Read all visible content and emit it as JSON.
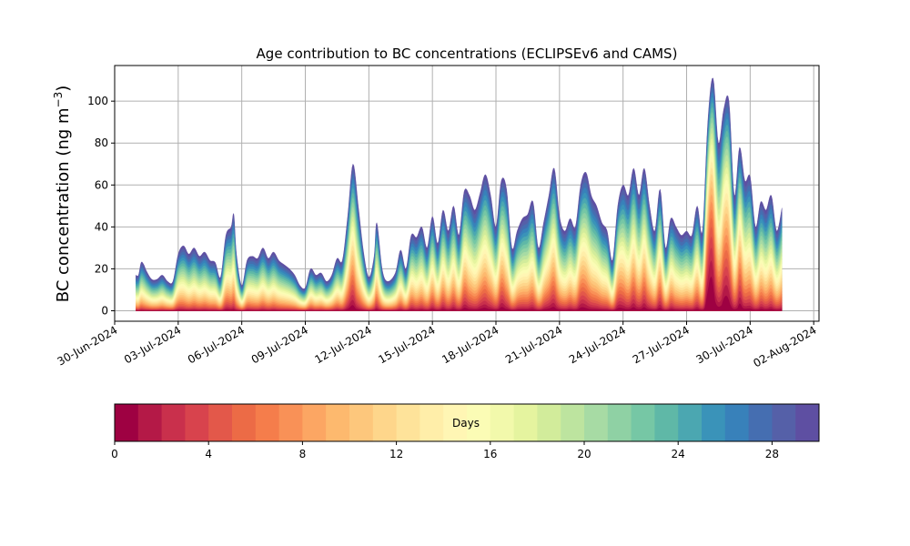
{
  "chart_data": {
    "type": "area",
    "title": "Age contribution to BC concentrations (ECLIPSEv6 and CAMS)",
    "ylabel": "BC concentration (ng m",
    "ylabel_sup": "−3",
    "ylabel_close": ")",
    "xlabel": "",
    "ylim": [
      -5,
      117
    ],
    "xlim": [
      "2024-06-30T00:00",
      "2024-08-02T06:00"
    ],
    "grid": true,
    "x_tick_labels": [
      "30-Jun-2024",
      "03-Jul-2024",
      "06-Jul-2024",
      "09-Jul-2024",
      "12-Jul-2024",
      "15-Jul-2024",
      "18-Jul-2024",
      "21-Jul-2024",
      "24-Jul-2024",
      "27-Jul-2024",
      "30-Jul-2024",
      "02-Aug-2024"
    ],
    "x_tick_dates": [
      "2024-06-30",
      "2024-07-03",
      "2024-07-06",
      "2024-07-09",
      "2024-07-12",
      "2024-07-15",
      "2024-07-18",
      "2024-07-21",
      "2024-07-24",
      "2024-07-27",
      "2024-07-30",
      "2024-08-02"
    ],
    "y_ticks": [
      0,
      20,
      40,
      60,
      80,
      100
    ],
    "series_total": [
      {
        "x": "2024-07-01T00:00",
        "y": 17
      },
      {
        "x": "2024-07-01T03:00",
        "y": 17
      },
      {
        "x": "2024-07-01T06:00",
        "y": 23
      },
      {
        "x": "2024-07-01T09:00",
        "y": 22
      },
      {
        "x": "2024-07-01T12:00",
        "y": 19
      },
      {
        "x": "2024-07-01T18:00",
        "y": 15
      },
      {
        "x": "2024-07-02T00:00",
        "y": 15
      },
      {
        "x": "2024-07-02T06:00",
        "y": 17
      },
      {
        "x": "2024-07-02T12:00",
        "y": 14
      },
      {
        "x": "2024-07-02T18:00",
        "y": 14
      },
      {
        "x": "2024-07-03T00:00",
        "y": 27
      },
      {
        "x": "2024-07-03T06:00",
        "y": 31
      },
      {
        "x": "2024-07-03T12:00",
        "y": 27
      },
      {
        "x": "2024-07-03T18:00",
        "y": 30
      },
      {
        "x": "2024-07-04T00:00",
        "y": 26
      },
      {
        "x": "2024-07-04T06:00",
        "y": 28
      },
      {
        "x": "2024-07-04T12:00",
        "y": 24
      },
      {
        "x": "2024-07-04T18:00",
        "y": 23
      },
      {
        "x": "2024-07-05T00:00",
        "y": 16
      },
      {
        "x": "2024-07-05T06:00",
        "y": 36
      },
      {
        "x": "2024-07-05T12:00",
        "y": 40
      },
      {
        "x": "2024-07-05T15:00",
        "y": 46
      },
      {
        "x": "2024-07-05T18:00",
        "y": 27
      },
      {
        "x": "2024-07-06T00:00",
        "y": 12
      },
      {
        "x": "2024-07-06T06:00",
        "y": 24
      },
      {
        "x": "2024-07-06T12:00",
        "y": 26
      },
      {
        "x": "2024-07-06T18:00",
        "y": 25
      },
      {
        "x": "2024-07-07T00:00",
        "y": 30
      },
      {
        "x": "2024-07-07T06:00",
        "y": 25
      },
      {
        "x": "2024-07-07T12:00",
        "y": 28
      },
      {
        "x": "2024-07-07T18:00",
        "y": 24
      },
      {
        "x": "2024-07-08T00:00",
        "y": 22
      },
      {
        "x": "2024-07-08T06:00",
        "y": 20
      },
      {
        "x": "2024-07-08T12:00",
        "y": 17
      },
      {
        "x": "2024-07-08T18:00",
        "y": 12
      },
      {
        "x": "2024-07-09T00:00",
        "y": 11
      },
      {
        "x": "2024-07-09T06:00",
        "y": 20
      },
      {
        "x": "2024-07-09T12:00",
        "y": 17
      },
      {
        "x": "2024-07-09T18:00",
        "y": 18
      },
      {
        "x": "2024-07-10T00:00",
        "y": 14
      },
      {
        "x": "2024-07-10T06:00",
        "y": 17
      },
      {
        "x": "2024-07-10T12:00",
        "y": 25
      },
      {
        "x": "2024-07-10T18:00",
        "y": 24
      },
      {
        "x": "2024-07-11T00:00",
        "y": 45
      },
      {
        "x": "2024-07-11T06:00",
        "y": 70
      },
      {
        "x": "2024-07-11T12:00",
        "y": 50
      },
      {
        "x": "2024-07-11T18:00",
        "y": 28
      },
      {
        "x": "2024-07-12T00:00",
        "y": 16
      },
      {
        "x": "2024-07-12T06:00",
        "y": 26
      },
      {
        "x": "2024-07-12T09:00",
        "y": 42
      },
      {
        "x": "2024-07-12T15:00",
        "y": 20
      },
      {
        "x": "2024-07-12T21:00",
        "y": 14
      },
      {
        "x": "2024-07-13T06:00",
        "y": 18
      },
      {
        "x": "2024-07-13T12:00",
        "y": 29
      },
      {
        "x": "2024-07-13T18:00",
        "y": 20
      },
      {
        "x": "2024-07-14T00:00",
        "y": 36
      },
      {
        "x": "2024-07-14T06:00",
        "y": 35
      },
      {
        "x": "2024-07-14T12:00",
        "y": 40
      },
      {
        "x": "2024-07-14T18:00",
        "y": 30
      },
      {
        "x": "2024-07-15T00:00",
        "y": 45
      },
      {
        "x": "2024-07-15T06:00",
        "y": 32
      },
      {
        "x": "2024-07-15T12:00",
        "y": 48
      },
      {
        "x": "2024-07-15T18:00",
        "y": 38
      },
      {
        "x": "2024-07-16T00:00",
        "y": 50
      },
      {
        "x": "2024-07-16T06:00",
        "y": 36
      },
      {
        "x": "2024-07-16T12:00",
        "y": 57
      },
      {
        "x": "2024-07-16T18:00",
        "y": 55
      },
      {
        "x": "2024-07-17T00:00",
        "y": 48
      },
      {
        "x": "2024-07-17T06:00",
        "y": 56
      },
      {
        "x": "2024-07-17T12:00",
        "y": 65
      },
      {
        "x": "2024-07-17T18:00",
        "y": 55
      },
      {
        "x": "2024-07-18T00:00",
        "y": 40
      },
      {
        "x": "2024-07-18T06:00",
        "y": 62
      },
      {
        "x": "2024-07-18T12:00",
        "y": 58
      },
      {
        "x": "2024-07-18T18:00",
        "y": 30
      },
      {
        "x": "2024-07-19T00:00",
        "y": 38
      },
      {
        "x": "2024-07-19T06:00",
        "y": 44
      },
      {
        "x": "2024-07-19T12:00",
        "y": 46
      },
      {
        "x": "2024-07-19T18:00",
        "y": 52
      },
      {
        "x": "2024-07-20T00:00",
        "y": 30
      },
      {
        "x": "2024-07-20T06:00",
        "y": 42
      },
      {
        "x": "2024-07-20T12:00",
        "y": 55
      },
      {
        "x": "2024-07-20T18:00",
        "y": 68
      },
      {
        "x": "2024-07-21T00:00",
        "y": 45
      },
      {
        "x": "2024-07-21T06:00",
        "y": 38
      },
      {
        "x": "2024-07-21T12:00",
        "y": 44
      },
      {
        "x": "2024-07-21T18:00",
        "y": 40
      },
      {
        "x": "2024-07-22T00:00",
        "y": 60
      },
      {
        "x": "2024-07-22T06:00",
        "y": 66
      },
      {
        "x": "2024-07-22T12:00",
        "y": 55
      },
      {
        "x": "2024-07-22T18:00",
        "y": 50
      },
      {
        "x": "2024-07-23T00:00",
        "y": 42
      },
      {
        "x": "2024-07-23T06:00",
        "y": 38
      },
      {
        "x": "2024-07-23T12:00",
        "y": 24
      },
      {
        "x": "2024-07-23T18:00",
        "y": 50
      },
      {
        "x": "2024-07-24T00:00",
        "y": 60
      },
      {
        "x": "2024-07-24T06:00",
        "y": 55
      },
      {
        "x": "2024-07-24T12:00",
        "y": 68
      },
      {
        "x": "2024-07-24T18:00",
        "y": 55
      },
      {
        "x": "2024-07-25T00:00",
        "y": 68
      },
      {
        "x": "2024-07-25T06:00",
        "y": 50
      },
      {
        "x": "2024-07-25T12:00",
        "y": 38
      },
      {
        "x": "2024-07-25T18:00",
        "y": 58
      },
      {
        "x": "2024-07-26T00:00",
        "y": 30
      },
      {
        "x": "2024-07-26T06:00",
        "y": 44
      },
      {
        "x": "2024-07-26T12:00",
        "y": 40
      },
      {
        "x": "2024-07-26T18:00",
        "y": 36
      },
      {
        "x": "2024-07-27T00:00",
        "y": 38
      },
      {
        "x": "2024-07-27T06:00",
        "y": 36
      },
      {
        "x": "2024-07-27T12:00",
        "y": 50
      },
      {
        "x": "2024-07-27T18:00",
        "y": 38
      },
      {
        "x": "2024-07-28T00:00",
        "y": 90
      },
      {
        "x": "2024-07-28T06:00",
        "y": 111
      },
      {
        "x": "2024-07-28T12:00",
        "y": 80
      },
      {
        "x": "2024-07-28T18:00",
        "y": 96
      },
      {
        "x": "2024-07-29T00:00",
        "y": 100
      },
      {
        "x": "2024-07-29T06:00",
        "y": 55
      },
      {
        "x": "2024-07-29T12:00",
        "y": 78
      },
      {
        "x": "2024-07-29T18:00",
        "y": 62
      },
      {
        "x": "2024-07-30T00:00",
        "y": 64
      },
      {
        "x": "2024-07-30T06:00",
        "y": 40
      },
      {
        "x": "2024-07-30T12:00",
        "y": 52
      },
      {
        "x": "2024-07-30T18:00",
        "y": 48
      },
      {
        "x": "2024-07-31T00:00",
        "y": 55
      },
      {
        "x": "2024-07-31T06:00",
        "y": 38
      },
      {
        "x": "2024-07-31T12:00",
        "y": 49
      }
    ],
    "colorbar": {
      "label": "Days",
      "range": [
        0,
        30
      ],
      "ticks": [
        0,
        4,
        8,
        12,
        16,
        20,
        24,
        28
      ],
      "colors": [
        "#9e0142",
        "#b41947",
        "#c9304c",
        "#d8434d",
        "#e3584a",
        "#ec6b46",
        "#f57d4b",
        "#f99157",
        "#fca663",
        "#fdb96e",
        "#fdc77c",
        "#fed68b",
        "#fee39a",
        "#ffeea9",
        "#fff6b4",
        "#fbfcb5",
        "#f2f9ab",
        "#e5f49f",
        "#d2ec9b",
        "#bde49f",
        "#a7dba4",
        "#8fd1a4",
        "#76c7a5",
        "#5fb8a7",
        "#4ba7b1",
        "#3a93b9",
        "#3881ba",
        "#456eb1",
        "#5560a8",
        "#5e4fa2"
      ]
    }
  }
}
